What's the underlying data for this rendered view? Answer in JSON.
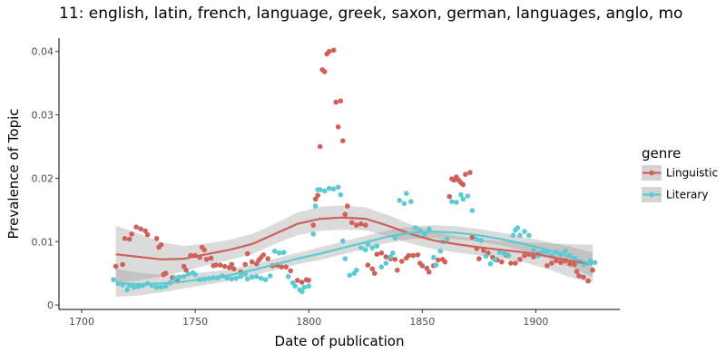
{
  "chart_data": {
    "type": "scatter",
    "title": "11: english, latin, french, language, greek, saxon, german, languages, anglo, mo",
    "xlabel": "Date of publication",
    "ylabel": "Prevalence of Topic",
    "xlim": [
      1690,
      1937
    ],
    "ylim": [
      -0.0007,
      0.0421
    ],
    "x_ticks": [
      1700,
      1750,
      1800,
      1850,
      1900
    ],
    "x_tick_labels": [
      "1700",
      "1750",
      "1800",
      "1850",
      "1900"
    ],
    "y_ticks": [
      0,
      0.01,
      0.02,
      0.03,
      0.04
    ],
    "y_tick_labels": [
      "0",
      "0.01",
      "0.02",
      "0.03",
      "0.04"
    ],
    "grid": false,
    "legend": {
      "title": "genre",
      "position": "right"
    },
    "series": [
      {
        "name": "Linguistic",
        "color": "#D0605A",
        "points": [
          [
            1715,
            0.0061
          ],
          [
            1718,
            0.0064
          ],
          [
            1719,
            0.0105
          ],
          [
            1721,
            0.0104
          ],
          [
            1722,
            0.0112
          ],
          [
            1724,
            0.0123
          ],
          [
            1726,
            0.012
          ],
          [
            1728,
            0.0117
          ],
          [
            1729,
            0.0111
          ],
          [
            1733,
            0.0105
          ],
          [
            1734,
            0.0091
          ],
          [
            1735,
            0.0095
          ],
          [
            1736,
            0.0048
          ],
          [
            1737,
            0.005
          ],
          [
            1740,
            0.0043
          ],
          [
            1742,
            0.0038
          ],
          [
            1745,
            0.0061
          ],
          [
            1746,
            0.0055
          ],
          [
            1748,
            0.0078
          ],
          [
            1750,
            0.0078
          ],
          [
            1752,
            0.0075
          ],
          [
            1753,
            0.0091
          ],
          [
            1754,
            0.0087
          ],
          [
            1755,
            0.0072
          ],
          [
            1757,
            0.0074
          ],
          [
            1758,
            0.0062
          ],
          [
            1759,
            0.0063
          ],
          [
            1761,
            0.0063
          ],
          [
            1763,
            0.0061
          ],
          [
            1765,
            0.0059
          ],
          [
            1766,
            0.0064
          ],
          [
            1767,
            0.0057
          ],
          [
            1770,
            0.0052
          ],
          [
            1772,
            0.0064
          ],
          [
            1773,
            0.0081
          ],
          [
            1775,
            0.0068
          ],
          [
            1777,
            0.0065
          ],
          [
            1778,
            0.0071
          ],
          [
            1779,
            0.0075
          ],
          [
            1780,
            0.0079
          ],
          [
            1782,
            0.0073
          ],
          [
            1784,
            0.0062
          ],
          [
            1786,
            0.0063
          ],
          [
            1788,
            0.006
          ],
          [
            1790,
            0.006
          ],
          [
            1792,
            0.0054
          ],
          [
            1795,
            0.0039
          ],
          [
            1797,
            0.0036
          ],
          [
            1799,
            0.004
          ],
          [
            1800,
            0.0039
          ],
          [
            1802,
            0.0126
          ],
          [
            1803,
            0.0167
          ],
          [
            1804,
            0.0173
          ],
          [
            1805,
            0.025
          ],
          [
            1806,
            0.0371
          ],
          [
            1807,
            0.0368
          ],
          [
            1808,
            0.0396
          ],
          [
            1809,
            0.04
          ],
          [
            1811,
            0.0402
          ],
          [
            1812,
            0.032
          ],
          [
            1813,
            0.0281
          ],
          [
            1814,
            0.0322
          ],
          [
            1815,
            0.0259
          ],
          [
            1816,
            0.0143
          ],
          [
            1817,
            0.0156
          ],
          [
            1819,
            0.013
          ],
          [
            1821,
            0.0126
          ],
          [
            1823,
            0.0128
          ],
          [
            1825,
            0.0126
          ],
          [
            1826,
            0.0063
          ],
          [
            1828,
            0.0057
          ],
          [
            1829,
            0.005
          ],
          [
            1830,
            0.008
          ],
          [
            1832,
            0.0082
          ],
          [
            1834,
            0.0076
          ],
          [
            1836,
            0.0073
          ],
          [
            1838,
            0.0072
          ],
          [
            1839,
            0.0055
          ],
          [
            1841,
            0.0069
          ],
          [
            1843,
            0.0074
          ],
          [
            1844,
            0.0078
          ],
          [
            1846,
            0.0078
          ],
          [
            1848,
            0.0079
          ],
          [
            1849,
            0.0066
          ],
          [
            1850,
            0.0062
          ],
          [
            1852,
            0.0058
          ],
          [
            1853,
            0.0052
          ],
          [
            1855,
            0.0062
          ],
          [
            1857,
            0.0071
          ],
          [
            1859,
            0.0072
          ],
          [
            1860,
            0.0068
          ],
          [
            1862,
            0.0171
          ],
          [
            1863,
            0.0199
          ],
          [
            1864,
            0.0197
          ],
          [
            1865,
            0.0202
          ],
          [
            1866,
            0.0197
          ],
          [
            1867,
            0.0193
          ],
          [
            1868,
            0.019
          ],
          [
            1869,
            0.0206
          ],
          [
            1871,
            0.0209
          ],
          [
            1872,
            0.0107
          ],
          [
            1874,
            0.0089
          ],
          [
            1875,
            0.0073
          ],
          [
            1877,
            0.0086
          ],
          [
            1879,
            0.0082
          ],
          [
            1881,
            0.0075
          ],
          [
            1883,
            0.0071
          ],
          [
            1885,
            0.0068
          ],
          [
            1887,
            0.0079
          ],
          [
            1889,
            0.0066
          ],
          [
            1891,
            0.0066
          ],
          [
            1893,
            0.0072
          ],
          [
            1895,
            0.0078
          ],
          [
            1897,
            0.008
          ],
          [
            1899,
            0.0076
          ],
          [
            1901,
            0.008
          ],
          [
            1903,
            0.0082
          ],
          [
            1905,
            0.0062
          ],
          [
            1907,
            0.0066
          ],
          [
            1909,
            0.007
          ],
          [
            1911,
            0.0067
          ],
          [
            1913,
            0.007
          ],
          [
            1915,
            0.0065
          ],
          [
            1917,
            0.0064
          ],
          [
            1918,
            0.0053
          ],
          [
            1919,
            0.0046
          ],
          [
            1921,
            0.0044
          ],
          [
            1923,
            0.0038
          ],
          [
            1925,
            0.0055
          ]
        ],
        "smooth": [
          [
            1715,
            0.008
          ],
          [
            1725,
            0.0076
          ],
          [
            1735,
            0.0072
          ],
          [
            1745,
            0.0073
          ],
          [
            1755,
            0.008
          ],
          [
            1765,
            0.0087
          ],
          [
            1775,
            0.0096
          ],
          [
            1785,
            0.0112
          ],
          [
            1795,
            0.0128
          ],
          [
            1805,
            0.0136
          ],
          [
            1815,
            0.0138
          ],
          [
            1825,
            0.0136
          ],
          [
            1835,
            0.0125
          ],
          [
            1845,
            0.0112
          ],
          [
            1855,
            0.0102
          ],
          [
            1865,
            0.0096
          ],
          [
            1875,
            0.0091
          ],
          [
            1885,
            0.0087
          ],
          [
            1895,
            0.0083
          ],
          [
            1905,
            0.0077
          ],
          [
            1915,
            0.007
          ],
          [
            1925,
            0.0065
          ]
        ],
        "ci_width": [
          0.0045,
          0.0037,
          0.0027,
          0.002,
          0.0017,
          0.0016,
          0.0016,
          0.0016,
          0.0018,
          0.0019,
          0.0019,
          0.0018,
          0.0017,
          0.0015,
          0.0014,
          0.0013,
          0.0013,
          0.0014,
          0.0016,
          0.002,
          0.0026,
          0.003
        ]
      },
      {
        "name": "Literary",
        "color": "#5BCBD2",
        "points": [
          [
            1714,
            0.004
          ],
          [
            1716,
            0.0034
          ],
          [
            1718,
            0.0032
          ],
          [
            1720,
            0.0024
          ],
          [
            1721,
            0.0031
          ],
          [
            1723,
            0.0028
          ],
          [
            1725,
            0.0029
          ],
          [
            1727,
            0.0031
          ],
          [
            1729,
            0.0034
          ],
          [
            1731,
            0.0031
          ],
          [
            1733,
            0.0028
          ],
          [
            1735,
            0.0028
          ],
          [
            1737,
            0.003
          ],
          [
            1739,
            0.0035
          ],
          [
            1741,
            0.0042
          ],
          [
            1743,
            0.0044
          ],
          [
            1745,
            0.0045
          ],
          [
            1747,
            0.0049
          ],
          [
            1749,
            0.0051
          ],
          [
            1750,
            0.0048
          ],
          [
            1752,
            0.004
          ],
          [
            1754,
            0.0041
          ],
          [
            1756,
            0.0042
          ],
          [
            1758,
            0.0043
          ],
          [
            1760,
            0.0043
          ],
          [
            1762,
            0.0046
          ],
          [
            1764,
            0.0043
          ],
          [
            1766,
            0.0041
          ],
          [
            1768,
            0.0042
          ],
          [
            1770,
            0.0045
          ],
          [
            1772,
            0.0049
          ],
          [
            1773,
            0.0041
          ],
          [
            1775,
            0.0044
          ],
          [
            1777,
            0.0045
          ],
          [
            1779,
            0.0042
          ],
          [
            1781,
            0.004
          ],
          [
            1783,
            0.0046
          ],
          [
            1785,
            0.0085
          ],
          [
            1787,
            0.0082
          ],
          [
            1789,
            0.0083
          ],
          [
            1791,
            0.0045
          ],
          [
            1793,
            0.0035
          ],
          [
            1794,
            0.003
          ],
          [
            1796,
            0.0024
          ],
          [
            1797,
            0.0021
          ],
          [
            1798,
            0.0028
          ],
          [
            1800,
            0.003
          ],
          [
            1802,
            0.0112
          ],
          [
            1803,
            0.0156
          ],
          [
            1804,
            0.0182
          ],
          [
            1805,
            0.0182
          ],
          [
            1807,
            0.018
          ],
          [
            1809,
            0.0184
          ],
          [
            1811,
            0.0183
          ],
          [
            1813,
            0.0186
          ],
          [
            1814,
            0.0174
          ],
          [
            1815,
            0.0101
          ],
          [
            1816,
            0.0073
          ],
          [
            1818,
            0.0047
          ],
          [
            1820,
            0.005
          ],
          [
            1821,
            0.0055
          ],
          [
            1823,
            0.009
          ],
          [
            1825,
            0.0087
          ],
          [
            1826,
            0.0096
          ],
          [
            1828,
            0.009
          ],
          [
            1830,
            0.0093
          ],
          [
            1832,
            0.006
          ],
          [
            1834,
            0.0066
          ],
          [
            1836,
            0.0076
          ],
          [
            1837,
            0.0082
          ],
          [
            1838,
            0.0106
          ],
          [
            1840,
            0.0165
          ],
          [
            1842,
            0.016
          ],
          [
            1843,
            0.0176
          ],
          [
            1845,
            0.0163
          ],
          [
            1847,
            0.0122
          ],
          [
            1849,
            0.0117
          ],
          [
            1851,
            0.0112
          ],
          [
            1853,
            0.012
          ],
          [
            1855,
            0.0075
          ],
          [
            1856,
            0.0063
          ],
          [
            1858,
            0.0085
          ],
          [
            1859,
            0.01
          ],
          [
            1861,
            0.0104
          ],
          [
            1863,
            0.0163
          ],
          [
            1865,
            0.0162
          ],
          [
            1867,
            0.0174
          ],
          [
            1868,
            0.0167
          ],
          [
            1870,
            0.0172
          ],
          [
            1872,
            0.0149
          ],
          [
            1874,
            0.0104
          ],
          [
            1876,
            0.0102
          ],
          [
            1878,
            0.0077
          ],
          [
            1880,
            0.0065
          ],
          [
            1882,
            0.0071
          ],
          [
            1884,
            0.0083
          ],
          [
            1886,
            0.0081
          ],
          [
            1888,
            0.0078
          ],
          [
            1890,
            0.011
          ],
          [
            1891,
            0.0118
          ],
          [
            1892,
            0.0122
          ],
          [
            1893,
            0.011
          ],
          [
            1895,
            0.0116
          ],
          [
            1897,
            0.011
          ],
          [
            1899,
            0.0086
          ],
          [
            1901,
            0.0078
          ],
          [
            1903,
            0.0083
          ],
          [
            1905,
            0.0084
          ],
          [
            1907,
            0.0078
          ],
          [
            1909,
            0.0083
          ],
          [
            1911,
            0.008
          ],
          [
            1913,
            0.0085
          ],
          [
            1915,
            0.0078
          ],
          [
            1917,
            0.0074
          ],
          [
            1919,
            0.0068
          ],
          [
            1921,
            0.0064
          ],
          [
            1923,
            0.0066
          ],
          [
            1924,
            0.007
          ],
          [
            1926,
            0.0067
          ]
        ],
        "smooth": [
          [
            1715,
            0.0035
          ],
          [
            1725,
            0.0033
          ],
          [
            1735,
            0.0034
          ],
          [
            1745,
            0.0037
          ],
          [
            1755,
            0.0042
          ],
          [
            1765,
            0.0047
          ],
          [
            1775,
            0.0055
          ],
          [
            1785,
            0.0064
          ],
          [
            1795,
            0.0073
          ],
          [
            1805,
            0.0081
          ],
          [
            1815,
            0.009
          ],
          [
            1825,
            0.0099
          ],
          [
            1835,
            0.0108
          ],
          [
            1845,
            0.0114
          ],
          [
            1855,
            0.0116
          ],
          [
            1865,
            0.0114
          ],
          [
            1875,
            0.011
          ],
          [
            1885,
            0.0104
          ],
          [
            1895,
            0.0096
          ],
          [
            1905,
            0.0087
          ],
          [
            1915,
            0.0076
          ],
          [
            1925,
            0.0064
          ]
        ],
        "ci_width": [
          0.0022,
          0.0018,
          0.0014,
          0.0011,
          0.001,
          0.0009,
          0.0009,
          0.0009,
          0.0009,
          0.001,
          0.001,
          0.001,
          0.001,
          0.001,
          0.001,
          0.001,
          0.001,
          0.001,
          0.0011,
          0.0013,
          0.0016,
          0.0019
        ]
      }
    ]
  }
}
